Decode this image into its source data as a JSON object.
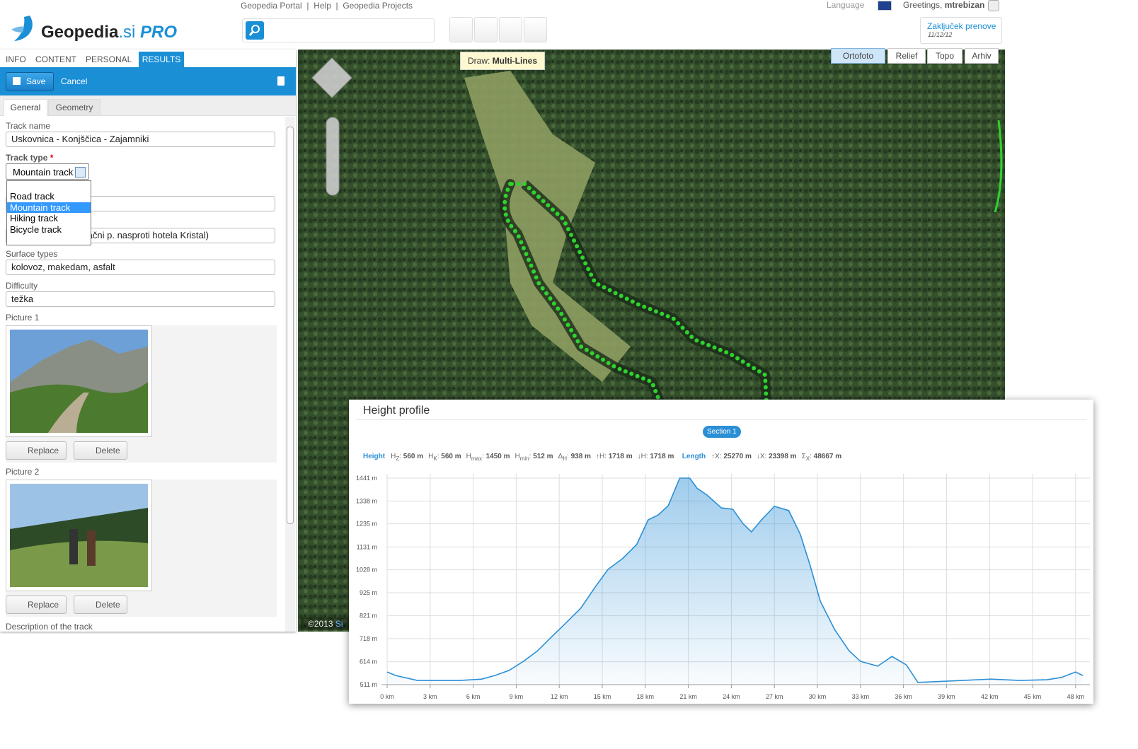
{
  "header": {
    "logo": "Geopedia",
    "logo_suffix": ".si",
    "logo_pro": "PRO",
    "links": [
      "Geopedia Portal",
      "Help",
      "Geopedia Projects"
    ],
    "language": "Language",
    "greeting": "Greetings,",
    "user": "mtrebizan",
    "session_link": "Zaključek prenove",
    "session_date": "11/12/12"
  },
  "tabs": [
    "INFO",
    "CONTENT",
    "PERSONAL",
    "RESULTS"
  ],
  "toolbar": {
    "save": "Save",
    "cancel": "Cancel"
  },
  "subtabs": [
    "General",
    "Geometry"
  ],
  "form": {
    "track_name_label": "Track name",
    "track_name": "Uskovnica - Konjščica - Zajamniki",
    "track_type_label": "Track type",
    "required_mark": "*",
    "track_type": "Mountain track",
    "track_type_options": [
      "Road track",
      "Mountain track",
      "Hiking track",
      "Bicycle track"
    ],
    "start_point": "Ribčev Laz (brezplačni p. nasproti hotela Kristal)",
    "surface_label": "Surface types",
    "surface": "kolovoz, makedam, asfalt",
    "difficulty_label": "Difficulty",
    "difficulty": "težka",
    "pictures": [
      {
        "label": "Picture 1",
        "replace": "Replace",
        "delete": "Delete"
      },
      {
        "label": "Picture 2",
        "replace": "Replace",
        "delete": "Delete"
      }
    ],
    "description_label": "Description of the track"
  },
  "map": {
    "draw_label": "Draw:",
    "draw_mode": "Multi-Lines",
    "layers": [
      "Ortofoto",
      "Relief",
      "Topo",
      "Arhiv"
    ],
    "copyright": "©2013",
    "credit": "Si"
  },
  "chart_data": {
    "type": "line",
    "title": "Height profile",
    "section": "Section 1",
    "height_label": "Height",
    "stats": [
      {
        "symbol": "H",
        "sub": "Z",
        "sep": ":",
        "value": "560 m"
      },
      {
        "symbol": "H",
        "sub": "K",
        "sep": ":",
        "value": "560 m"
      },
      {
        "symbol": "H",
        "sub": "max",
        "sep": ":",
        "value": "1450 m"
      },
      {
        "symbol": "H",
        "sub": "min",
        "sep": ":",
        "value": "512 m"
      },
      {
        "symbol": "Δ",
        "sub": "H",
        "sep": ":",
        "value": "938 m"
      },
      {
        "symbol": "↑H:",
        "value": "1718 m"
      },
      {
        "symbol": "↓H:",
        "value": "1718 m"
      }
    ],
    "length_label": "Length",
    "length_stats": [
      {
        "symbol": "↑X:",
        "value": "25270 m"
      },
      {
        "symbol": "↓X:",
        "value": "23398 m"
      },
      {
        "symbol": "Σ",
        "sub": "X",
        "sep": ":",
        "value": "48667 m"
      }
    ],
    "color": "#2b8fd6",
    "grid": true,
    "x": [
      0,
      0.6,
      2.1,
      5.1,
      6.6,
      7.5,
      8.5,
      9.5,
      10.5,
      11.5,
      12.5,
      13.5,
      14.5,
      15.4,
      16.4,
      17.4,
      18.2,
      18.9,
      19.6,
      20.4,
      21.1,
      21.6,
      22.3,
      23.3,
      24.1,
      24.8,
      25.4,
      26.1,
      27.0,
      28.0,
      28.8,
      29.5,
      30.2,
      31.2,
      32.2,
      33.0,
      34.2,
      35.2,
      36.2,
      37.0,
      38.1,
      40.1,
      42.1,
      44.1,
      46.0,
      47.0,
      48.0,
      48.5
    ],
    "values": [
      568,
      552,
      530,
      530,
      536,
      552,
      575,
      616,
      664,
      728,
      791,
      855,
      950,
      1030,
      1078,
      1142,
      1253,
      1275,
      1317,
      1441,
      1441,
      1396,
      1365,
      1307,
      1301,
      1237,
      1199,
      1253,
      1314,
      1295,
      1189,
      1046,
      887,
      759,
      664,
      616,
      594,
      638,
      600,
      521,
      524,
      530,
      536,
      530,
      533,
      543,
      568,
      552
    ],
    "xlim": [
      0,
      48.6
    ],
    "ylim": [
      511,
      1441
    ],
    "xticks": [
      {
        "value": 0,
        "label": "0 km"
      },
      {
        "value": 3,
        "label": "3 km"
      },
      {
        "value": 6,
        "label": "6 km"
      },
      {
        "value": 9,
        "label": "9 km"
      },
      {
        "value": 12,
        "label": "12 km"
      },
      {
        "value": 15,
        "label": "15 km"
      },
      {
        "value": 18,
        "label": "18 km"
      },
      {
        "value": 21,
        "label": "21 km"
      },
      {
        "value": 24,
        "label": "24 km"
      },
      {
        "value": 27,
        "label": "27 km"
      },
      {
        "value": 30,
        "label": "30 km"
      },
      {
        "value": 33,
        "label": "33 km"
      },
      {
        "value": 36,
        "label": "36 km"
      },
      {
        "value": 39,
        "label": "39 km"
      },
      {
        "value": 42,
        "label": "42 km"
      },
      {
        "value": 45,
        "label": "45 km"
      },
      {
        "value": 48,
        "label": "48 km"
      }
    ],
    "yticks": [
      {
        "value": 511,
        "label": "511 m"
      },
      {
        "value": 614,
        "label": "614 m"
      },
      {
        "value": 718,
        "label": "718 m"
      },
      {
        "value": 821,
        "label": "821 m"
      },
      {
        "value": 925,
        "label": "925 m"
      },
      {
        "value": 1028,
        "label": "1028 m"
      },
      {
        "value": 1131,
        "label": "1131 m"
      },
      {
        "value": 1235,
        "label": "1235 m"
      },
      {
        "value": 1338,
        "label": "1338 m"
      },
      {
        "value": 1441,
        "label": "1441 m"
      }
    ]
  }
}
